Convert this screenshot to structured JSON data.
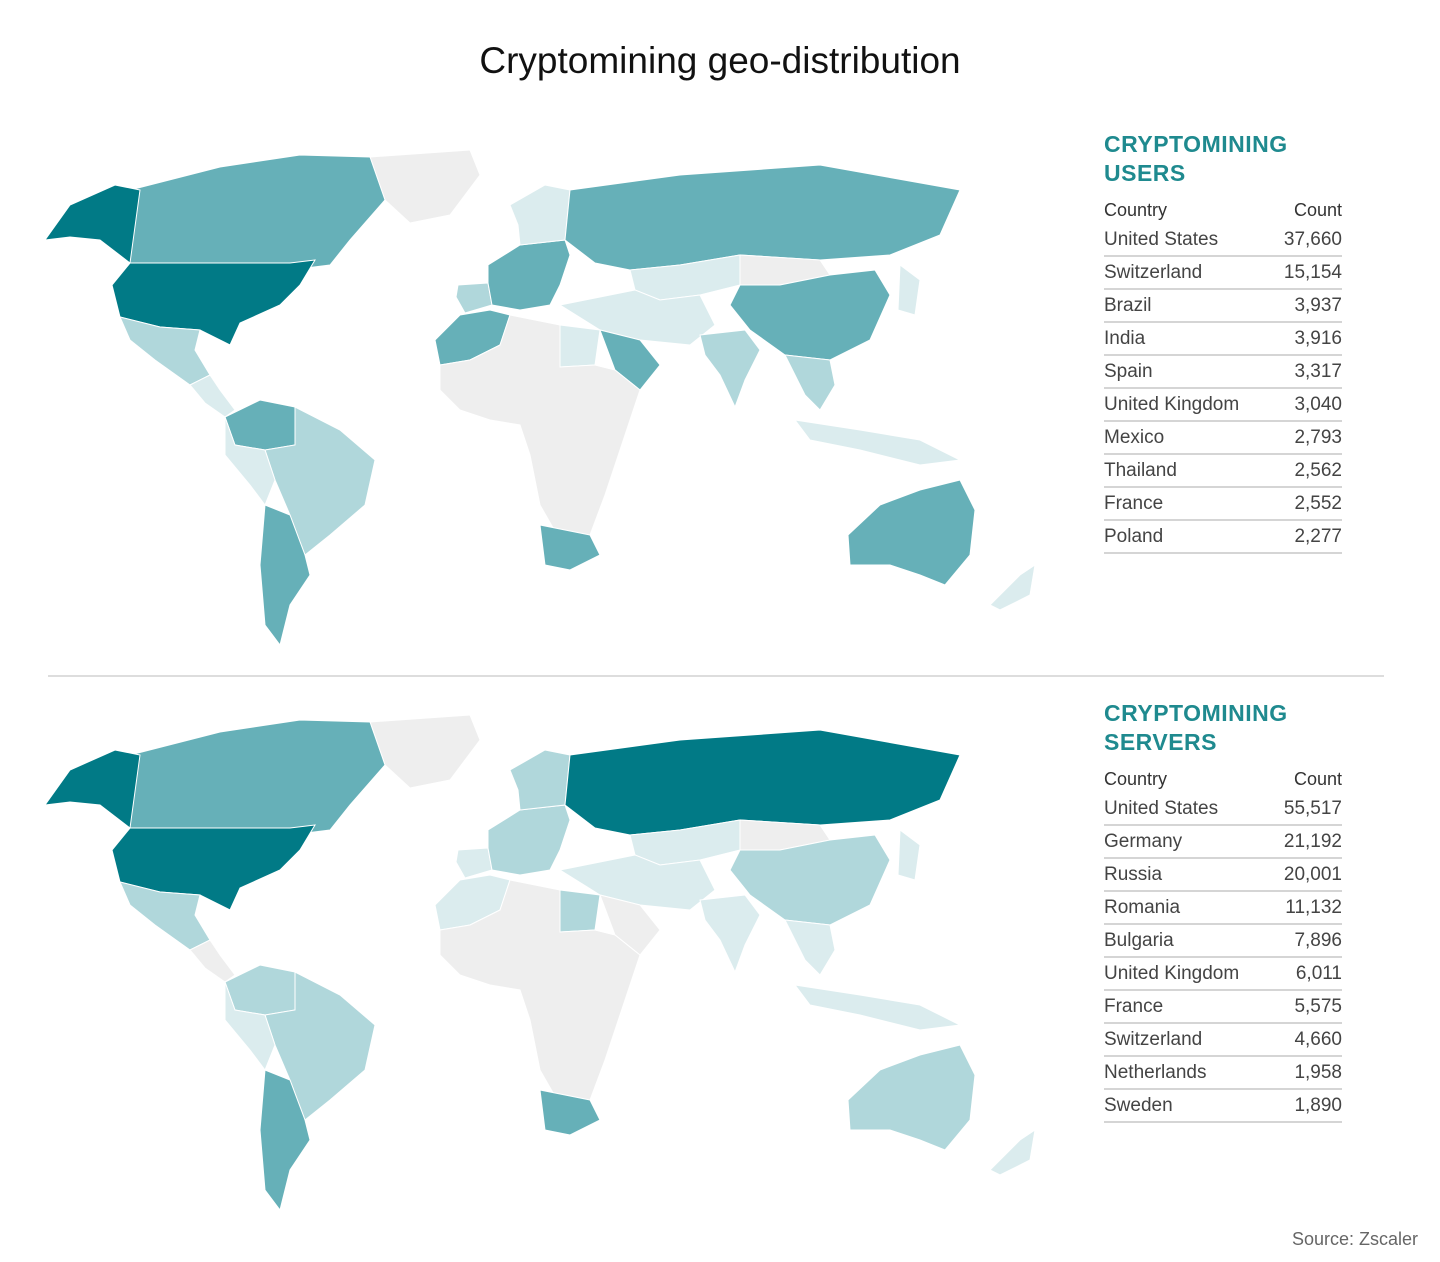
{
  "title": "Cryptomining geo-distribution",
  "source": "Source: Zscaler",
  "colors": {
    "high": "#017a86",
    "medium": "#66b0b8",
    "low": "#b0d7db",
    "very_low": "#dbecee",
    "no_data": "#eeeeee",
    "heading": "#1f8a8f"
  },
  "users": {
    "heading_line1": "CRYPTOMINING",
    "heading_line2": "USERS",
    "col_country": "Country",
    "col_count": "Count",
    "rows": [
      {
        "country": "United States",
        "count": "37,660"
      },
      {
        "country": "Switzerland",
        "count": "15,154"
      },
      {
        "country": "Brazil",
        "count": "3,937"
      },
      {
        "country": "India",
        "count": "3,916"
      },
      {
        "country": "Spain",
        "count": "3,317"
      },
      {
        "country": "United Kingdom",
        "count": "3,040"
      },
      {
        "country": "Mexico",
        "count": "2,793"
      },
      {
        "country": "Thailand",
        "count": "2,562"
      },
      {
        "country": "France",
        "count": "2,552"
      },
      {
        "country": "Poland",
        "count": "2,277"
      }
    ]
  },
  "servers": {
    "heading_line1": "CRYPTOMINING",
    "heading_line2": "SERVERS",
    "col_country": "Country",
    "col_count": "Count",
    "rows": [
      {
        "country": "United States",
        "count": "55,517"
      },
      {
        "country": "Germany",
        "count": "21,192"
      },
      {
        "country": "Russia",
        "count": "20,001"
      },
      {
        "country": "Romania",
        "count": "11,132"
      },
      {
        "country": "Bulgaria",
        "count": "7,896"
      },
      {
        "country": "United Kingdom",
        "count": "6,011"
      },
      {
        "country": "France",
        "count": "5,575"
      },
      {
        "country": "Switzerland",
        "count": "4,660"
      },
      {
        "country": "Netherlands",
        "count": "1,958"
      },
      {
        "country": "Sweden",
        "count": "1,890"
      }
    ]
  },
  "map_shading": {
    "users": {
      "north-america-north": "medium",
      "alaska": "high",
      "usa": "high",
      "mexico": "low",
      "central-america": "very_low",
      "greenland": "no_data",
      "south-america-north": "medium",
      "brazil": "low",
      "andes-west": "very_low",
      "argentina": "medium",
      "europe": "medium",
      "iberia": "low",
      "russia": "medium",
      "central-asia": "very_low",
      "china": "medium",
      "mongolia": "no_data",
      "middle-east": "very_low",
      "saudi-arabia": "medium",
      "india": "low",
      "southeast-asia": "low",
      "indonesia": "very_low",
      "africa": "no_data",
      "north-africa-west": "medium",
      "egypt": "very_low",
      "south-africa": "medium",
      "australia": "medium",
      "new-zealand": "very_low",
      "scandinavia": "very_low",
      "japan": "very_low"
    },
    "servers": {
      "north-america-north": "medium",
      "alaska": "high",
      "usa": "high",
      "mexico": "low",
      "central-america": "no_data",
      "greenland": "no_data",
      "south-america-north": "low",
      "brazil": "low",
      "andes-west": "very_low",
      "argentina": "medium",
      "europe": "low",
      "iberia": "very_low",
      "russia": "high",
      "central-asia": "very_low",
      "china": "low",
      "mongolia": "no_data",
      "middle-east": "very_low",
      "saudi-arabia": "no_data",
      "india": "very_low",
      "southeast-asia": "very_low",
      "indonesia": "very_low",
      "africa": "no_data",
      "north-africa-west": "very_low",
      "egypt": "low",
      "south-africa": "medium",
      "australia": "low",
      "new-zealand": "very_low",
      "scandinavia": "low",
      "japan": "very_low"
    }
  }
}
